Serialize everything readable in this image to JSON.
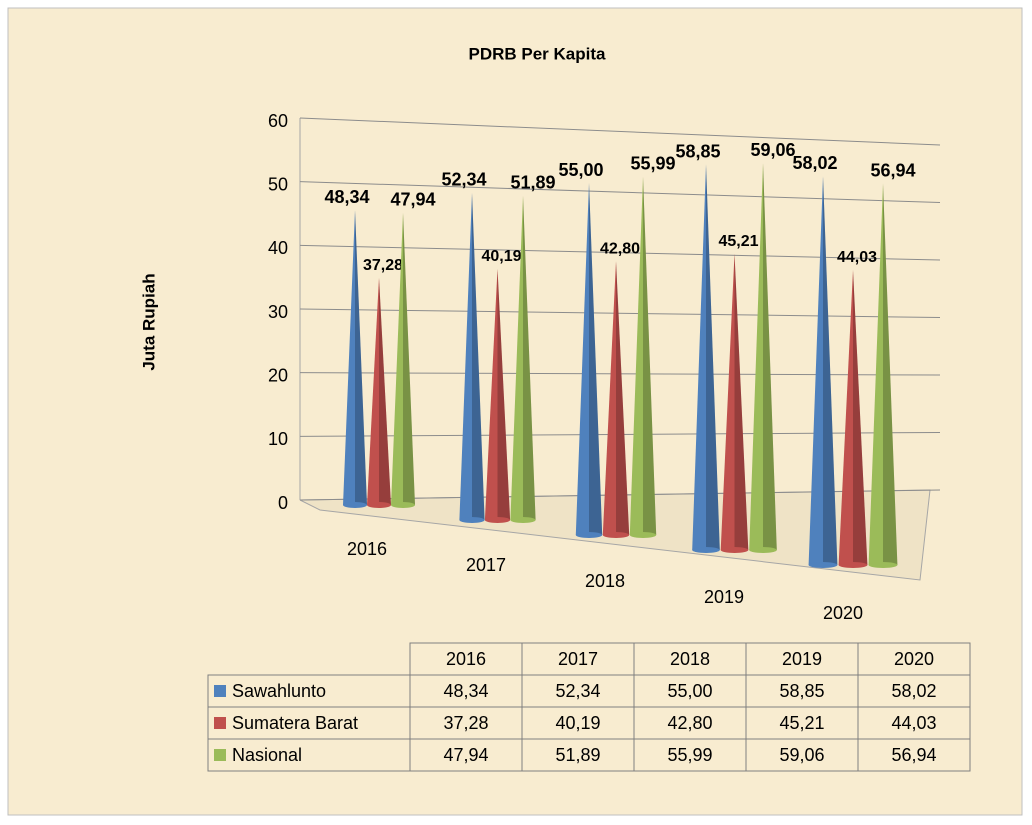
{
  "chart_data": {
    "type": "cone3d",
    "title": "PDRB Per Kapita",
    "y_label": "Juta Rupiah",
    "categories": [
      "2016",
      "2017",
      "2018",
      "2019",
      "2020"
    ],
    "series": [
      {
        "name": "Sawahlunto",
        "color": "#4f81bd",
        "label_color": "#2e75b6",
        "values": [
          48.34,
          52.34,
          55.0,
          58.85,
          58.02
        ],
        "value_labels": [
          "48,34",
          "52,34",
          "55,00",
          "58,85",
          "58,02"
        ]
      },
      {
        "name": "Sumatera Barat",
        "color": "#c0504d",
        "label_color": "#ff0000",
        "values": [
          37.28,
          40.19,
          42.8,
          45.21,
          44.03
        ],
        "value_labels": [
          "37,28",
          "40,19",
          "42,80",
          "45,21",
          "44,03"
        ]
      },
      {
        "name": "Nasional",
        "color": "#9bbb59",
        "label_color": "#4f6228",
        "values": [
          47.94,
          51.89,
          55.99,
          59.06,
          56.94
        ],
        "value_labels": [
          "47,94",
          "51,89",
          "55,99",
          "59,06",
          "56,94"
        ]
      }
    ],
    "ylim": [
      0,
      60
    ],
    "yticks": [
      0,
      10,
      20,
      30,
      40,
      50,
      60
    ],
    "grid": true,
    "data_table": true
  }
}
